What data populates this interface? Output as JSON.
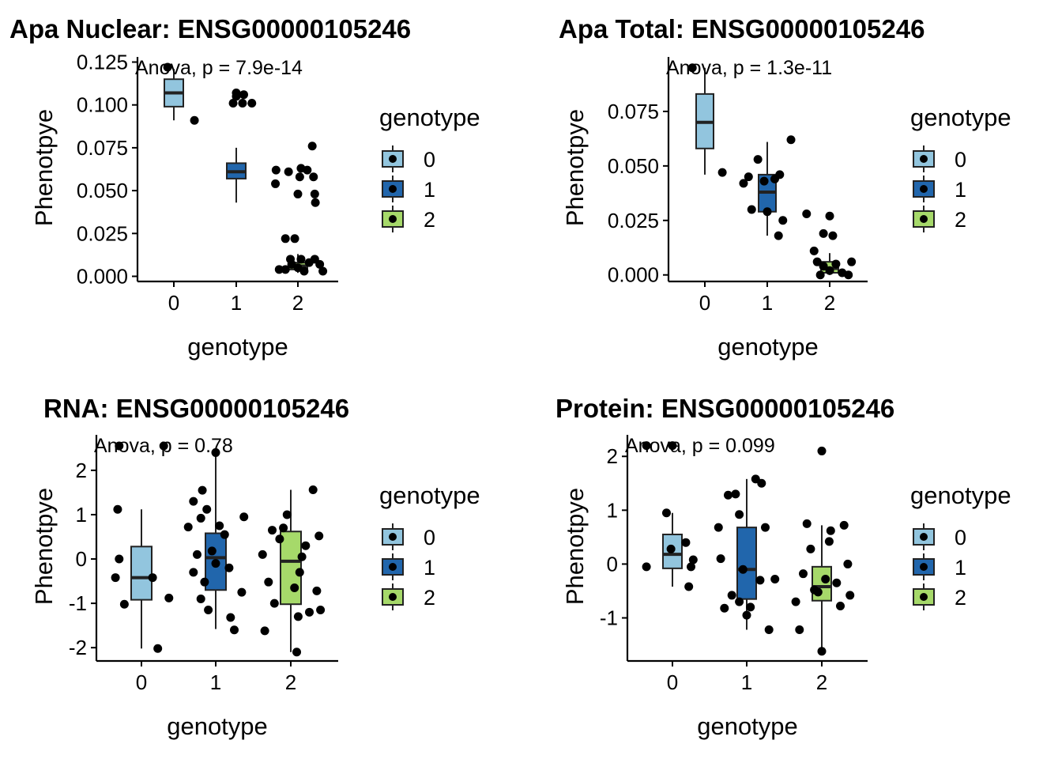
{
  "theme": {
    "genotype_colors": {
      "0": "#92c5de",
      "1": "#2166ac",
      "2": "#a6d96a"
    },
    "point_color": "#000000",
    "axis_color": "#000000"
  },
  "legend": {
    "title": "genotype",
    "entries": [
      "0",
      "1",
      "2"
    ]
  },
  "chart_data": [
    {
      "type": "box",
      "title": "Apa Nuclear: ENSG00000105246",
      "xlabel": "genotype",
      "ylabel": "Phenotpye",
      "annotation": "Anova, p = 7.9e-14",
      "categories": [
        "0",
        "1",
        "2"
      ],
      "ylim": [
        -0.003,
        0.128
      ],
      "yticks": [
        0,
        0.025,
        0.05,
        0.075,
        0.1,
        0.125
      ],
      "ytick_labels": [
        "0.000",
        "0.025",
        "0.050",
        "0.075",
        "0.100",
        "0.125"
      ],
      "boxes": [
        {
          "category": "0",
          "q1": 0.099,
          "median": 0.107,
          "q3": 0.115,
          "whisker_low": 0.091,
          "whisker_high": 0.121
        },
        {
          "category": "1",
          "q1": 0.057,
          "median": 0.061,
          "q3": 0.066,
          "whisker_low": 0.043,
          "whisker_high": 0.075
        },
        {
          "category": "2",
          "q1": 0.004,
          "median": 0.006,
          "q3": 0.008,
          "whisker_low": 0.002,
          "whisker_high": 0.013
        }
      ],
      "points": [
        {
          "x": -0.1,
          "y": 0.122
        },
        {
          "x": 0.33,
          "y": 0.091
        },
        {
          "x": 0.0,
          "y": 0.107
        },
        {
          "x": -0.05,
          "y": 0.101
        },
        {
          "x": 0.0,
          "y": 0.105
        },
        {
          "x": 0.12,
          "y": 0.106
        },
        {
          "x": 0.25,
          "y": 0.101
        },
        {
          "x": 0.1,
          "y": 0.101
        },
        {
          "x": 0.23,
          "y": 0.076
        },
        {
          "x": -0.35,
          "y": 0.062
        },
        {
          "x": -0.36,
          "y": 0.054
        },
        {
          "x": -0.15,
          "y": 0.061
        },
        {
          "x": 0.05,
          "y": 0.063
        },
        {
          "x": 0.15,
          "y": 0.062
        },
        {
          "x": 0.25,
          "y": 0.058
        },
        {
          "x": 0.03,
          "y": 0.058
        },
        {
          "x": 0.28,
          "y": 0.043
        },
        {
          "x": 0.0,
          "y": 0.048
        },
        {
          "x": 0.27,
          "y": 0.048
        },
        {
          "x": -0.2,
          "y": 0.022
        },
        {
          "x": -0.05,
          "y": 0.022
        },
        {
          "x": -0.3,
          "y": 0.004
        },
        {
          "x": -0.2,
          "y": 0.004
        },
        {
          "x": -0.1,
          "y": 0.007
        },
        {
          "x": 0.0,
          "y": 0.005
        },
        {
          "x": 0.1,
          "y": 0.003
        },
        {
          "x": 0.18,
          "y": 0.008
        },
        {
          "x": 0.27,
          "y": 0.01
        },
        {
          "x": 0.35,
          "y": 0.007
        },
        {
          "x": 0.4,
          "y": 0.003
        },
        {
          "x": 0.05,
          "y": 0.01
        },
        {
          "x": -0.12,
          "y": 0.01
        }
      ]
    },
    {
      "type": "box",
      "title": "Apa Total: ENSG00000105246",
      "xlabel": "genotype",
      "ylabel": "Phenotpye",
      "annotation": "Anova, p = 1.3e-11",
      "categories": [
        "0",
        "1",
        "2"
      ],
      "ylim": [
        -0.003,
        0.1
      ],
      "yticks": [
        0,
        0.025,
        0.05,
        0.075
      ],
      "ytick_labels": [
        "0.000",
        "0.025",
        "0.050",
        "0.075"
      ],
      "boxes": [
        {
          "category": "0",
          "q1": 0.058,
          "median": 0.07,
          "q3": 0.083,
          "whisker_low": 0.046,
          "whisker_high": 0.095
        },
        {
          "category": "1",
          "q1": 0.029,
          "median": 0.038,
          "q3": 0.046,
          "whisker_low": 0.018,
          "whisker_high": 0.061
        },
        {
          "category": "2",
          "q1": 0.001,
          "median": 0.003,
          "q3": 0.006,
          "whisker_low": 0.0,
          "whisker_high": 0.01
        }
      ],
      "points": [
        {
          "x": -0.2,
          "y": 0.095
        },
        {
          "x": 0.28,
          "y": 0.047
        },
        {
          "x": -0.38,
          "y": 0.042
        },
        {
          "x": -0.3,
          "y": 0.045
        },
        {
          "x": -0.15,
          "y": 0.053
        },
        {
          "x": -0.05,
          "y": 0.043
        },
        {
          "x": 0.12,
          "y": 0.044
        },
        {
          "x": 0.2,
          "y": 0.046
        },
        {
          "x": 0.38,
          "y": 0.062
        },
        {
          "x": -0.25,
          "y": 0.03
        },
        {
          "x": 0.0,
          "y": 0.029
        },
        {
          "x": 0.18,
          "y": 0.018
        },
        {
          "x": 0.25,
          "y": 0.025
        },
        {
          "x": -0.37,
          "y": 0.028
        },
        {
          "x": 0.0,
          "y": 0.027
        },
        {
          "x": -0.1,
          "y": 0.019
        },
        {
          "x": 0.05,
          "y": 0.018
        },
        {
          "x": -0.25,
          "y": 0.011
        },
        {
          "x": -0.2,
          "y": 0.006
        },
        {
          "x": -0.1,
          "y": 0.004
        },
        {
          "x": 0.0,
          "y": 0.002
        },
        {
          "x": 0.1,
          "y": 0.005
        },
        {
          "x": 0.2,
          "y": 0.001
        },
        {
          "x": 0.3,
          "y": 0.0
        },
        {
          "x": 0.35,
          "y": 0.006
        },
        {
          "x": -0.15,
          "y": 0.0
        }
      ]
    },
    {
      "type": "box",
      "title": "RNA: ENSG00000105246",
      "xlabel": "genotype",
      "ylabel": "Phenotpye",
      "annotation": "Anova, p = 0.78",
      "categories": [
        "0",
        "1",
        "2"
      ],
      "ylim": [
        -2.3,
        2.8
      ],
      "yticks": [
        -2,
        -1,
        0,
        1,
        2
      ],
      "ytick_labels": [
        "-2",
        "-1",
        "0",
        "1",
        "2"
      ],
      "boxes": [
        {
          "category": "0",
          "q1": -0.92,
          "median": -0.42,
          "q3": 0.28,
          "whisker_low": -2.02,
          "whisker_high": 1.12
        },
        {
          "category": "1",
          "q1": -0.7,
          "median": 0.03,
          "q3": 0.58,
          "whisker_low": -1.58,
          "whisker_high": 2.4
        },
        {
          "category": "2",
          "q1": -1.02,
          "median": -0.05,
          "q3": 0.62,
          "whisker_low": -2.1,
          "whisker_high": 1.56
        }
      ],
      "points": [
        {
          "x": -0.3,
          "y": 2.55
        },
        {
          "x": 0.3,
          "y": 2.55
        },
        {
          "x": -0.32,
          "y": 1.12
        },
        {
          "x": -0.3,
          "y": 0.0
        },
        {
          "x": -0.35,
          "y": -0.42
        },
        {
          "x": -0.23,
          "y": -1.02
        },
        {
          "x": 0.15,
          "y": -0.42
        },
        {
          "x": 0.37,
          "y": -0.88
        },
        {
          "x": 0.22,
          "y": -2.02
        },
        {
          "x": -0.18,
          "y": 1.55
        },
        {
          "x": -0.12,
          "y": 1.12
        },
        {
          "x": -0.37,
          "y": 0.72
        },
        {
          "x": -0.3,
          "y": -0.3
        },
        {
          "x": -0.25,
          "y": 0.1
        },
        {
          "x": -0.2,
          "y": -0.9
        },
        {
          "x": -0.1,
          "y": -1.15
        },
        {
          "x": 0.05,
          "y": 0.75
        },
        {
          "x": 0.12,
          "y": 0.55
        },
        {
          "x": 0.18,
          "y": -0.2
        },
        {
          "x": 0.2,
          "y": -1.32
        },
        {
          "x": 0.25,
          "y": -1.6
        },
        {
          "x": 0.35,
          "y": -0.75
        },
        {
          "x": 0.38,
          "y": 0.95
        },
        {
          "x": -0.05,
          "y": 0.18
        },
        {
          "x": 0.0,
          "y": 2.4
        },
        {
          "x": -0.15,
          "y": -0.52
        },
        {
          "x": 0.0,
          "y": -0.1
        },
        {
          "x": -0.3,
          "y": 1.3
        },
        {
          "x": -0.2,
          "y": 0.92
        },
        {
          "x": -0.15,
          "y": 0.45
        },
        {
          "x": -0.38,
          "y": 0.1
        },
        {
          "x": -0.3,
          "y": -0.52
        },
        {
          "x": -0.22,
          "y": -1.0
        },
        {
          "x": -0.35,
          "y": -1.62
        },
        {
          "x": -0.05,
          "y": 1.0
        },
        {
          "x": 0.05,
          "y": -0.65
        },
        {
          "x": 0.12,
          "y": -0.3
        },
        {
          "x": 0.2,
          "y": 0.3
        },
        {
          "x": 0.25,
          "y": -1.2
        },
        {
          "x": 0.3,
          "y": 1.56
        },
        {
          "x": 0.35,
          "y": -0.72
        },
        {
          "x": 0.38,
          "y": 0.52
        },
        {
          "x": 0.4,
          "y": -1.15
        },
        {
          "x": 0.1,
          "y": -1.3
        },
        {
          "x": 0.08,
          "y": -2.1
        },
        {
          "x": -0.1,
          "y": 0.7
        },
        {
          "x": 0.15,
          "y": 0.05
        },
        {
          "x": -0.25,
          "y": 0.65
        }
      ]
    },
    {
      "type": "box",
      "title": "Protein: ENSG00000105246",
      "xlabel": "genotype",
      "ylabel": "Phenotpye",
      "annotation": "Anova, p = 0.099",
      "categories": [
        "0",
        "1",
        "2"
      ],
      "ylim": [
        -1.8,
        2.4
      ],
      "yticks": [
        -1,
        0,
        1,
        2
      ],
      "ytick_labels": [
        "-1",
        "0",
        "1",
        "2"
      ],
      "boxes": [
        {
          "category": "0",
          "q1": -0.08,
          "median": 0.18,
          "q3": 0.55,
          "whisker_low": -0.42,
          "whisker_high": 0.95
        },
        {
          "category": "1",
          "q1": -0.65,
          "median": -0.1,
          "q3": 0.68,
          "whisker_low": -1.22,
          "whisker_high": 1.58
        },
        {
          "category": "2",
          "q1": -0.68,
          "median": -0.42,
          "q3": -0.05,
          "whisker_low": -1.62,
          "whisker_high": 0.72
        }
      ],
      "points": [
        {
          "x": -0.35,
          "y": 2.2
        },
        {
          "x": 0.0,
          "y": 2.2
        },
        {
          "x": -0.35,
          "y": -0.05
        },
        {
          "x": -0.08,
          "y": 0.95
        },
        {
          "x": -0.02,
          "y": 0.28
        },
        {
          "x": 0.18,
          "y": 0.4
        },
        {
          "x": 0.22,
          "y": -0.42
        },
        {
          "x": 0.28,
          "y": 0.08
        },
        {
          "x": 0.25,
          "y": -0.05
        },
        {
          "x": -0.38,
          "y": 0.68
        },
        {
          "x": -0.25,
          "y": 1.28
        },
        {
          "x": -0.15,
          "y": 1.3
        },
        {
          "x": -0.1,
          "y": 0.92
        },
        {
          "x": -0.35,
          "y": 0.1
        },
        {
          "x": -0.3,
          "y": -0.82
        },
        {
          "x": -0.2,
          "y": -0.58
        },
        {
          "x": -0.1,
          "y": -0.7
        },
        {
          "x": 0.0,
          "y": -0.95
        },
        {
          "x": 0.05,
          "y": -0.8
        },
        {
          "x": 0.12,
          "y": 1.58
        },
        {
          "x": 0.2,
          "y": 1.5
        },
        {
          "x": 0.18,
          "y": -0.3
        },
        {
          "x": 0.25,
          "y": 0.68
        },
        {
          "x": 0.3,
          "y": -1.22
        },
        {
          "x": 0.38,
          "y": -0.28
        },
        {
          "x": -0.05,
          "y": -0.1
        },
        {
          "x": 0.1,
          "y": 0.42
        },
        {
          "x": 0.0,
          "y": 2.1
        },
        {
          "x": -0.35,
          "y": -0.7
        },
        {
          "x": -0.3,
          "y": -1.22
        },
        {
          "x": -0.2,
          "y": 0.75
        },
        {
          "x": -0.15,
          "y": 0.28
        },
        {
          "x": -0.1,
          "y": -0.48
        },
        {
          "x": -0.05,
          "y": -0.52
        },
        {
          "x": 0.05,
          "y": -0.28
        },
        {
          "x": 0.12,
          "y": 0.62
        },
        {
          "x": 0.2,
          "y": -0.35
        },
        {
          "x": 0.25,
          "y": -0.78
        },
        {
          "x": 0.3,
          "y": 0.72
        },
        {
          "x": 0.35,
          "y": 0.0
        },
        {
          "x": 0.38,
          "y": -0.58
        },
        {
          "x": 0.0,
          "y": -1.62
        },
        {
          "x": -0.25,
          "y": -0.18
        }
      ]
    }
  ]
}
